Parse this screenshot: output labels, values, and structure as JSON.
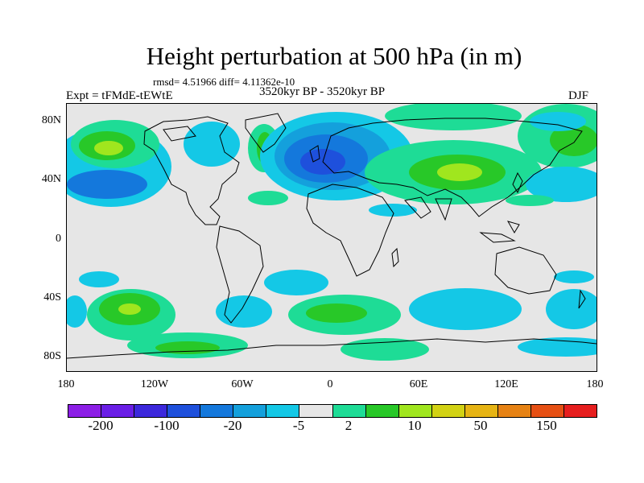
{
  "title": "Height perturbation at 500 hPa (in m)",
  "stats": "rmsd= 4.51966 diff= 4.11362e-10",
  "expt": "Expt = tFMdE-tEWtE",
  "period": "3520kyr BP - 3520kyr BP",
  "season": "DJF",
  "lat_labels": [
    "80N",
    "40N",
    "0",
    "40S",
    "80S"
  ],
  "lon_labels": [
    "180",
    "120W",
    "60W",
    "0",
    "60E",
    "120E",
    "180"
  ],
  "colorbar": {
    "colors": [
      "#8c1ee6",
      "#6a1ee6",
      "#3c28dc",
      "#1e50dc",
      "#1478dc",
      "#14a0dc",
      "#14c8e6",
      "#e6e6e6",
      "#1edc96",
      "#28c828",
      "#a0e61e",
      "#d2d214",
      "#e6b414",
      "#e68214",
      "#e65014",
      "#e61e1e"
    ],
    "labels": [
      "-200",
      "-100",
      "-20",
      "-5",
      "2",
      "10",
      "50",
      "150"
    ]
  }
}
